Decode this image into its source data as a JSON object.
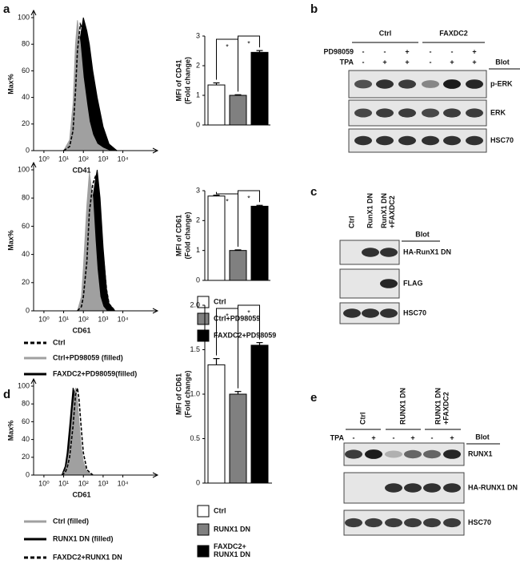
{
  "panel_labels": [
    "a",
    "b",
    "c",
    "d",
    "e"
  ],
  "chart_data": [
    {
      "type": "density",
      "xlabel": "CD41",
      "ylabel": "Max%",
      "x": [
        10,
        20,
        30,
        40,
        50,
        70,
        100,
        150,
        200,
        300,
        500,
        1000,
        2000,
        5000
      ],
      "xlim": [
        0.3,
        300000
      ],
      "log_x": true,
      "xticks": [
        {
          "value": 1,
          "label": "10⁰"
        },
        {
          "value": 10,
          "label": "10¹"
        },
        {
          "value": 100,
          "label": "10²"
        },
        {
          "value": 1000,
          "label": "10³"
        },
        {
          "value": 10000,
          "label": "10⁴"
        }
      ],
      "ylim": [
        0,
        100
      ],
      "yticks": [
        0,
        20,
        40,
        60,
        80,
        100
      ],
      "series": [
        {
          "color": "#000000",
          "filled": false,
          "line_style": "dashed",
          "values": [
            0,
            3,
            15,
            45,
            75,
            95,
            90,
            75,
            60,
            40,
            22,
            8,
            2,
            0
          ]
        },
        {
          "color": "#a0a0a0",
          "filled": true,
          "line_style": "solid",
          "values": [
            0,
            8,
            35,
            80,
            98,
            80,
            55,
            35,
            22,
            12,
            5,
            2,
            0,
            0
          ]
        },
        {
          "color": "#000000",
          "filled": true,
          "line_style": "solid",
          "values": [
            0,
            2,
            10,
            30,
            55,
            85,
            100,
            90,
            80,
            60,
            40,
            18,
            5,
            0
          ]
        }
      ]
    },
    {
      "type": "bar",
      "ylabel": "MFI of CD41",
      "ylabel_sub": "(Fold change)",
      "categories": [
        null
      ],
      "ylim": [
        0,
        3
      ],
      "yticks": [
        0,
        1,
        2,
        3
      ],
      "series": [
        {
          "color": "#ffffff",
          "values": [
            1.35
          ],
          "errors": [
            0.07
          ]
        },
        {
          "color": "#808080",
          "values": [
            1.0
          ],
          "errors": [
            0.02
          ]
        },
        {
          "color": "#000000",
          "values": [
            2.45
          ],
          "errors": [
            0.06
          ]
        }
      ],
      "annotations": [
        "*",
        "*"
      ]
    },
    {
      "type": "density",
      "xlabel": "CD61",
      "ylabel": "Max%",
      "x": [
        50,
        80,
        100,
        150,
        200,
        300,
        400,
        500,
        700,
        1000,
        1500,
        2000,
        4000
      ],
      "xlim": [
        0.3,
        300000
      ],
      "log_x": true,
      "xticks": [
        {
          "value": 1,
          "label": "10⁰"
        },
        {
          "value": 10,
          "label": "10¹"
        },
        {
          "value": 100,
          "label": "10²"
        },
        {
          "value": 1000,
          "label": "10³"
        },
        {
          "value": 10000,
          "label": "10⁴"
        }
      ],
      "ylim": [
        0,
        100
      ],
      "yticks": [
        0,
        20,
        40,
        60,
        80,
        100
      ],
      "series": [
        {
          "name": "Ctrl",
          "color": "#000000",
          "filled": false,
          "line_style": "dashed",
          "values": [
            0,
            3,
            10,
            35,
            70,
            90,
            95,
            90,
            70,
            40,
            15,
            5,
            0
          ]
        },
        {
          "name": "Ctrl+PD98059 (filled)",
          "color": "#a0a0a0",
          "filled": true,
          "line_style": "solid",
          "values": [
            0,
            10,
            30,
            75,
            98,
            80,
            50,
            30,
            10,
            3,
            0,
            0,
            0
          ]
        },
        {
          "name": "FAXDC2+PD98059(filled)",
          "color": "#000000",
          "filled": true,
          "line_style": "solid",
          "values": [
            0,
            2,
            6,
            25,
            55,
            80,
            92,
            100,
            80,
            45,
            15,
            5,
            0
          ]
        }
      ]
    },
    {
      "type": "bar",
      "ylabel": "MFI of CD61",
      "ylabel_sub": "(Fold change)",
      "categories": [
        null
      ],
      "ylim": [
        0,
        3
      ],
      "yticks": [
        0,
        1,
        2,
        3
      ],
      "series": [
        {
          "name": "Ctrl",
          "color": "#ffffff",
          "values": [
            2.82
          ],
          "errors": [
            0.03
          ]
        },
        {
          "name": "Ctrl+PD98059",
          "color": "#808080",
          "values": [
            1.0
          ],
          "errors": [
            0.02
          ]
        },
        {
          "name": "FAXDC2+PD98059",
          "color": "#000000",
          "values": [
            2.48
          ],
          "errors": [
            0.03
          ]
        }
      ],
      "annotations": [
        "*",
        "*"
      ]
    },
    {
      "type": "density",
      "xlabel": "CD61",
      "ylabel": "Max%",
      "x": [
        8,
        12,
        15,
        20,
        30,
        40,
        50,
        60,
        80,
        100,
        150,
        300
      ],
      "xlim": [
        0.3,
        300000
      ],
      "log_x": true,
      "xticks": [
        {
          "value": 1,
          "label": "10⁰"
        },
        {
          "value": 10,
          "label": "10¹"
        },
        {
          "value": 100,
          "label": "10²"
        },
        {
          "value": 1000,
          "label": "10³"
        },
        {
          "value": 10000,
          "label": "10⁴"
        }
      ],
      "ylim": [
        0,
        100
      ],
      "yticks": [
        0,
        20,
        40,
        60,
        80,
        100
      ],
      "series": [
        {
          "name": "Ctrl (filled)",
          "color": "#a0a0a0",
          "filled": true,
          "line_style": "solid",
          "values": [
            0,
            5,
            12,
            30,
            75,
            98,
            85,
            60,
            30,
            15,
            4,
            0
          ]
        },
        {
          "name": "RUNX1 DN (filled)",
          "color": "#000000",
          "filled": true,
          "line_style": "solid",
          "values": [
            0,
            10,
            25,
            55,
            98,
            90,
            65,
            40,
            15,
            6,
            1,
            0
          ]
        },
        {
          "name": "FAXDC2+RUNX1 DN",
          "color": "#000000",
          "filled": false,
          "line_style": "dashed",
          "values": [
            0,
            3,
            8,
            20,
            55,
            90,
            98,
            85,
            50,
            25,
            6,
            0
          ]
        }
      ]
    },
    {
      "type": "bar",
      "ylabel": "MFI of CD61",
      "ylabel_sub": "(Fold change)",
      "categories": [
        null
      ],
      "ylim": [
        0,
        2
      ],
      "yticks": [
        0,
        0.5,
        {
          "value": 1,
          "label": "1.0"
        },
        1.5,
        {
          "value": 2,
          "label": "2.0"
        }
      ],
      "series": [
        {
          "name": "Ctrl",
          "color": "#ffffff",
          "values": [
            1.33
          ],
          "errors": [
            0.07
          ]
        },
        {
          "name": "RUNX1 DN",
          "color": "#808080",
          "values": [
            1.0
          ],
          "errors": [
            0.03
          ]
        },
        {
          "name": "FAXDC2+\nRUNX1 DN",
          "color": "#000000",
          "values": [
            1.55
          ],
          "errors": [
            0.03
          ]
        }
      ],
      "annotations": [
        "*",
        "*"
      ]
    }
  ],
  "blot_b": {
    "groups": [
      "Ctrl",
      "FAXDC2"
    ],
    "rows": [
      {
        "label": "PD98059",
        "signs": [
          "-",
          "-",
          "+",
          "-",
          "-",
          "+"
        ]
      },
      {
        "label": "TPA",
        "signs": [
          "-",
          "+",
          "+",
          "-",
          "+",
          "+"
        ]
      }
    ],
    "blot_header": "Blot",
    "blots": [
      "p-ERK",
      "ERK",
      "HSC70"
    ]
  },
  "blot_c": {
    "lanes": [
      "Ctrl",
      "RunX1 DN",
      "RunX1 DN\n+FAXDC2"
    ],
    "blot_header": "Blot",
    "blots": [
      "HA-RunX1 DN",
      "FLAG",
      "HSC70"
    ]
  },
  "blot_e": {
    "groups": [
      "Ctrl",
      "RUNX1 DN",
      "RUNX1 DN\n+FAXDC2"
    ],
    "rows": [
      {
        "label": "TPA",
        "signs": [
          "-",
          "+",
          "-",
          "+",
          "-",
          "+"
        ]
      }
    ],
    "blot_header": "Blot",
    "blots": [
      "RUNX1",
      "HA-RUNX1 DN",
      "HSC70"
    ]
  }
}
